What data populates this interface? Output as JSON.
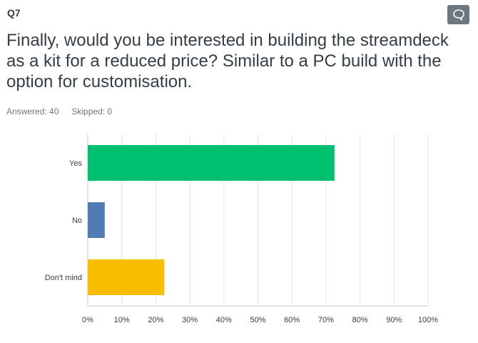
{
  "question": {
    "number": "Q7",
    "title": "Finally, would you be interested in building the streamdeck as a kit for a reduced price? Similar to a PC build with the option for customisation.",
    "answered_label": "Answered: 40",
    "skipped_label": "Skipped: 0"
  },
  "icons": {
    "comment": "speech-bubble-icon"
  },
  "colors": {
    "Yes": "#00bf6f",
    "No": "#507cb6",
    "Don't mind": "#f9be00",
    "grid": "#e2e6e8",
    "axis": "#c6cbce"
  },
  "chart_data": {
    "type": "bar",
    "orientation": "horizontal",
    "categories": [
      "Yes",
      "No",
      "Don't mind"
    ],
    "values": [
      72.5,
      5,
      22.5
    ],
    "xlim": [
      0,
      100
    ],
    "tick_labels": [
      "0%",
      "10%",
      "20%",
      "30%",
      "40%",
      "50%",
      "60%",
      "70%",
      "80%",
      "90%",
      "100%"
    ],
    "grid": true
  }
}
